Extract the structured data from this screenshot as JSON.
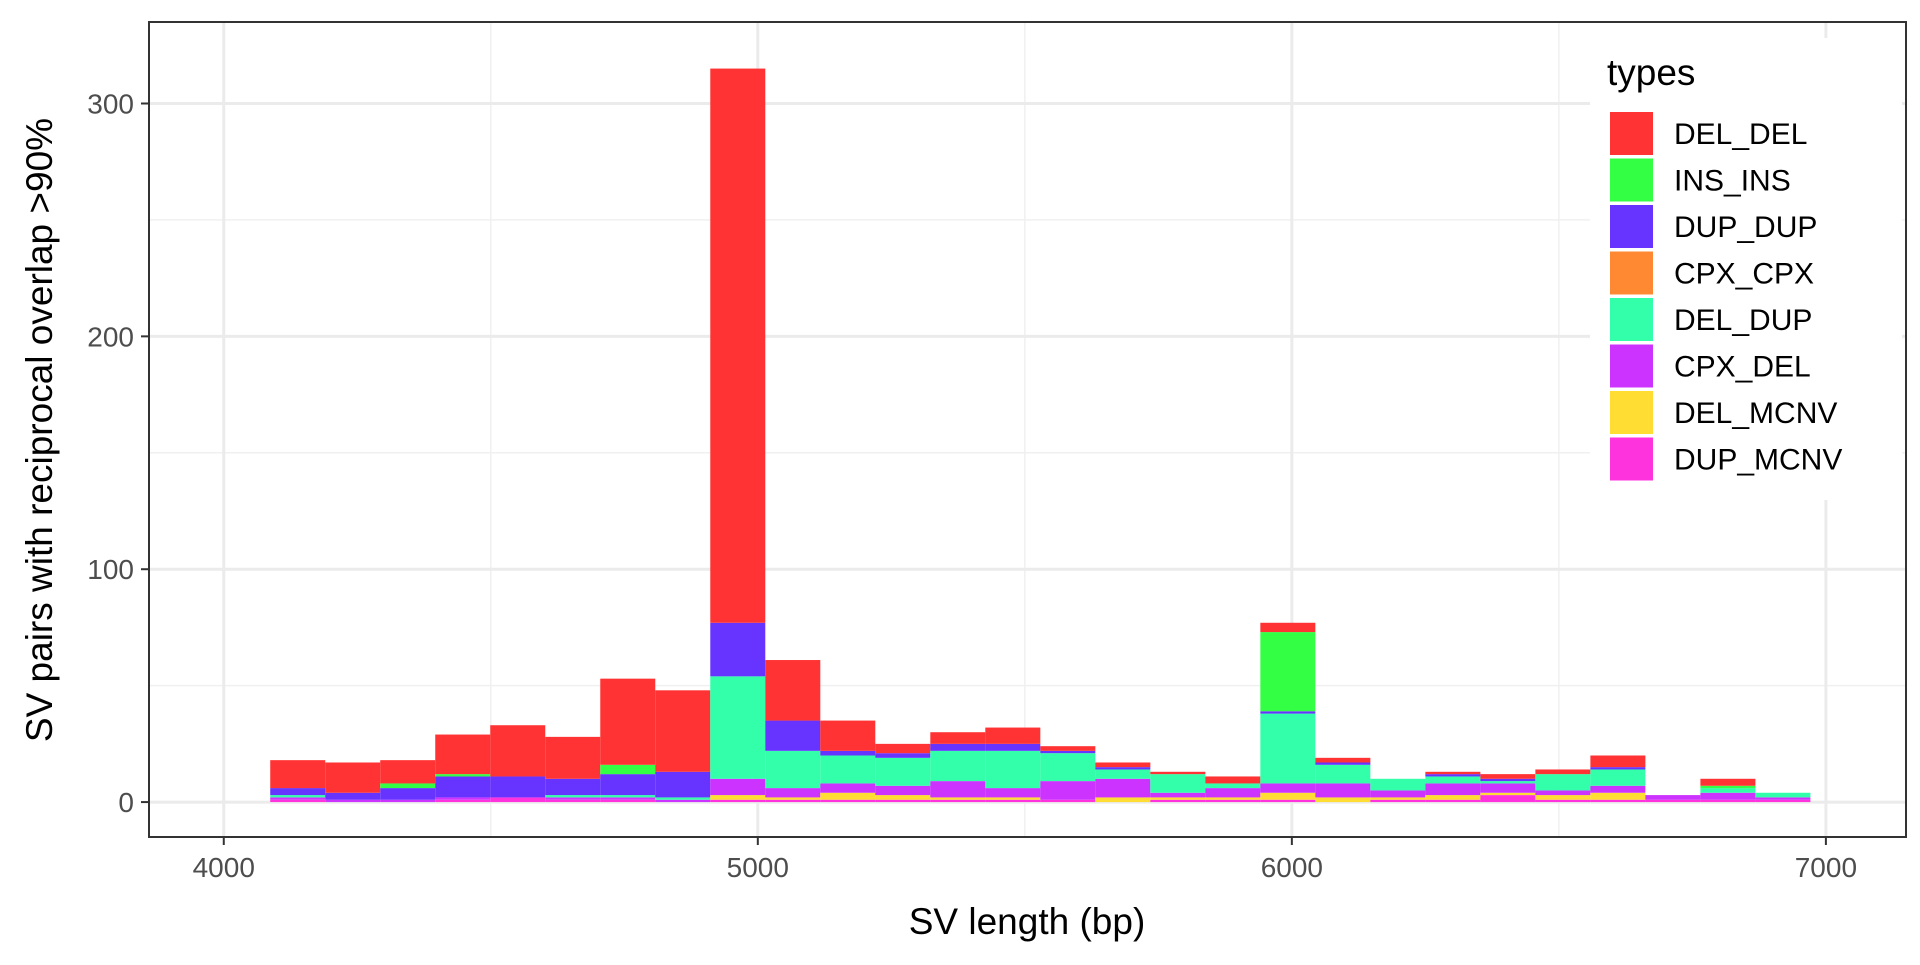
{
  "chart_data": {
    "type": "bar",
    "stacked": true,
    "xlabel": "SV length (bp)",
    "ylabel": "SV pairs with reciprocal overlap >90%",
    "xlim": [
      3860,
      7150
    ],
    "ylim": [
      -15,
      335
    ],
    "x_ticks": [
      4000,
      5000,
      6000,
      7000
    ],
    "y_ticks": [
      0,
      100,
      200,
      300
    ],
    "bin_width": 103,
    "bin_starts": [
      4087,
      4190,
      4293,
      4396,
      4499,
      4602,
      4705,
      4808,
      4911,
      5014,
      5117,
      5220,
      5323,
      5426,
      5529,
      5632,
      5735,
      5838,
      5941,
      6044,
      6147,
      6250,
      6353,
      6456,
      6559,
      6662,
      6765,
      6868
    ],
    "grid": true,
    "legend": {
      "title": "types",
      "position": "top-right"
    },
    "series": [
      {
        "name": "DUP_MCNV",
        "color": "#ff33dd",
        "values": [
          1,
          0,
          0,
          1,
          2,
          1,
          1,
          0,
          1,
          1,
          1,
          1,
          1,
          1,
          1,
          0,
          1,
          1,
          1,
          0,
          1,
          1,
          3,
          1,
          1,
          1,
          1,
          1
        ]
      },
      {
        "name": "DEL_MCNV",
        "color": "#ffdd33",
        "values": [
          0,
          0,
          0,
          0,
          0,
          0,
          0,
          0,
          2,
          1,
          3,
          2,
          1,
          1,
          0,
          2,
          1,
          1,
          3,
          2,
          1,
          2,
          1,
          2,
          3,
          0,
          0,
          0
        ]
      },
      {
        "name": "CPX_DEL",
        "color": "#cc33ff",
        "values": [
          1,
          1,
          1,
          1,
          0,
          1,
          1,
          1,
          7,
          4,
          4,
          4,
          7,
          4,
          8,
          8,
          2,
          4,
          4,
          6,
          3,
          5,
          4,
          2,
          3,
          2,
          3,
          1
        ]
      },
      {
        "name": "DEL_DUP",
        "color": "#33ffaa",
        "values": [
          1,
          0,
          0,
          0,
          0,
          1,
          1,
          1,
          44,
          16,
          12,
          12,
          13,
          16,
          12,
          4,
          8,
          2,
          30,
          8,
          5,
          3,
          1,
          7,
          7,
          0,
          2,
          2
        ]
      },
      {
        "name": "CPX_CPX",
        "color": "#ff8833",
        "values": [
          0,
          0,
          0,
          0,
          0,
          0,
          0,
          0,
          0,
          0,
          0,
          0,
          0,
          0,
          0,
          0,
          0,
          0,
          0,
          0,
          0,
          0,
          0,
          0,
          0,
          0,
          0,
          0
        ]
      },
      {
        "name": "DUP_DUP",
        "color": "#6633ff",
        "values": [
          3,
          3,
          5,
          9,
          9,
          7,
          9,
          11,
          23,
          13,
          2,
          2,
          3,
          3,
          1,
          1,
          0,
          0,
          1,
          1,
          0,
          1,
          1,
          0,
          1,
          0,
          0,
          0
        ]
      },
      {
        "name": "INS_INS",
        "color": "#33ff44",
        "values": [
          0,
          0,
          2,
          1,
          0,
          0,
          4,
          0,
          0,
          0,
          0,
          0,
          0,
          0,
          0,
          0,
          0,
          0,
          34,
          0,
          0,
          0,
          0,
          0,
          0,
          0,
          1,
          0
        ]
      },
      {
        "name": "DEL_DEL",
        "color": "#ff3333",
        "values": [
          12,
          13,
          10,
          17,
          22,
          18,
          37,
          35,
          238,
          26,
          13,
          4,
          5,
          7,
          2,
          2,
          1,
          3,
          4,
          2,
          0,
          1,
          2,
          2,
          5,
          0,
          3,
          0
        ]
      }
    ]
  }
}
